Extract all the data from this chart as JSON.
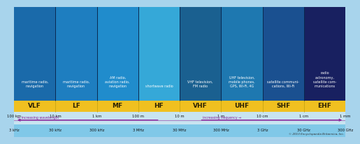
{
  "bands": [
    "VLF",
    "LF",
    "MF",
    "HF",
    "VHF",
    "UHF",
    "SHF",
    "EHF"
  ],
  "band_color": "#f0c020",
  "band_text_color": "#2a2000",
  "wavelengths": [
    "100 km",
    "10 km",
    "1 km",
    "100 m",
    "10 m",
    "1 m",
    "10 cm",
    "1 cm",
    "1 mm"
  ],
  "frequencies": [
    "3 kHz",
    "30 kHz",
    "300 kHz",
    "3 MHz",
    "30 MHz",
    "300 MHz",
    "3 GHz",
    "30 GHz",
    "300 GHz"
  ],
  "descriptions": [
    "maritime radio,\nnavigation",
    "maritime radio,\nnavigation",
    "AM radio,\naviation radio,\nnavigation",
    "shortwave radio",
    "VHF television,\nFM radio",
    "UHF television,\nmobile phones,\nGPS, Wi-Fi, 4G",
    "satellite communi-\ncations, Wi-Fi",
    "radio\nastronomy,\nsatellite com-\nmunications"
  ],
  "top_bg_colors": [
    "#1a6aaa",
    "#1e7ec0",
    "#208ccc",
    "#35a8d8",
    "#1a6090",
    "#1e78b0",
    "#1a5090",
    "#182060"
  ],
  "wave_bg": "#c8e4f0",
  "freq_bg": "#80c8e8",
  "fig_bg": "#a8d4ec",
  "arrow_color": "#882299",
  "copyright": "© 2013 Encyclopaedia Britannica, Inc.",
  "divider_color": "#0a2850",
  "band_divider_color": "#c0a010"
}
